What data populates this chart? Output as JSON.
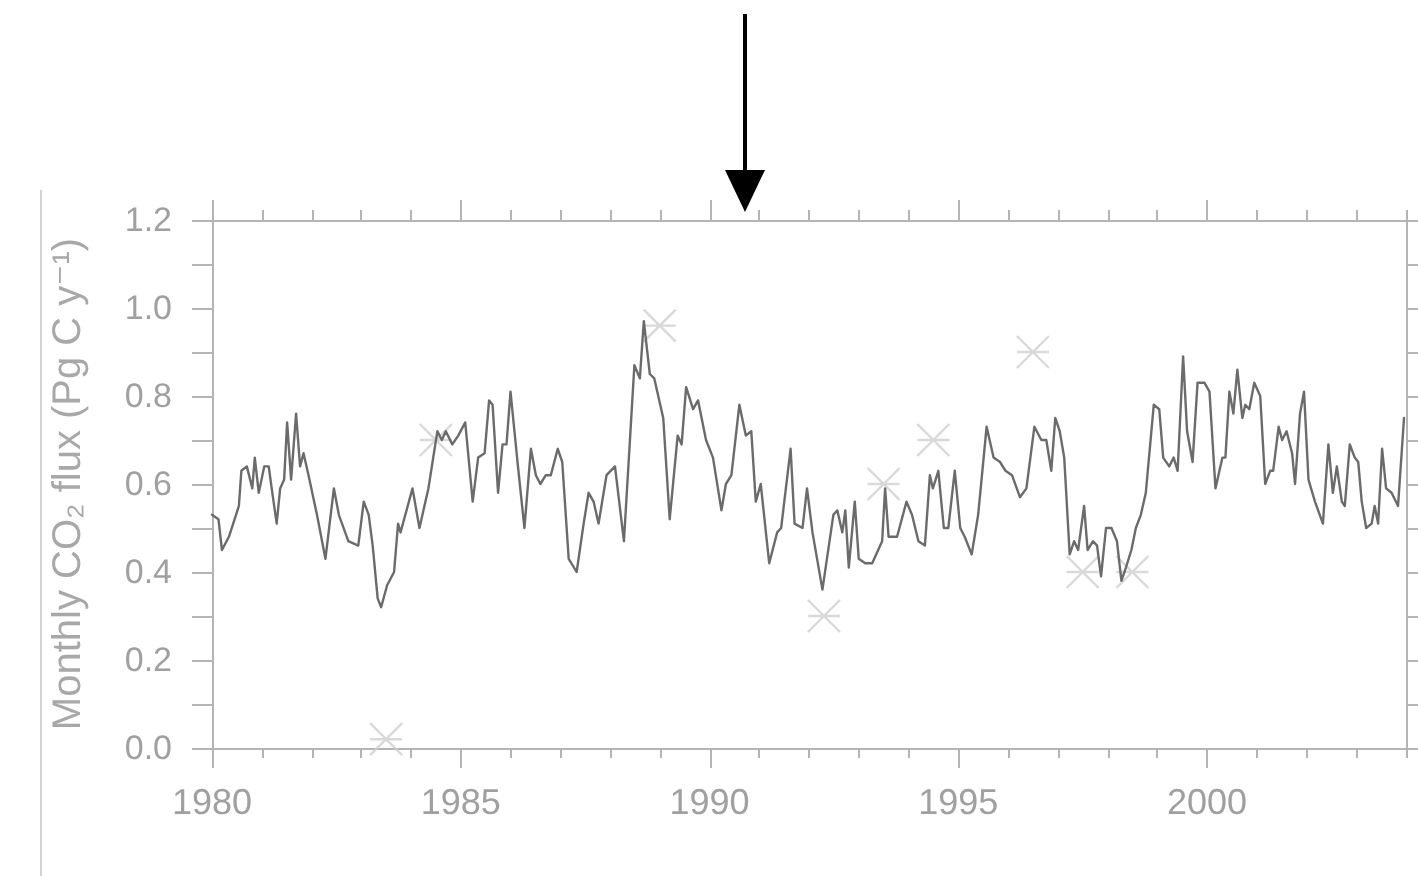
{
  "chart_data": {
    "type": "line",
    "ylabel": "Monthly CO₂ flux (Pg C y⁻¹)",
    "xlim": [
      1980,
      2004
    ],
    "xticks": [
      1980,
      {
        "value": 1981,
        "label": null
      },
      {
        "value": 1982,
        "label": null
      },
      {
        "value": 1983,
        "label": null
      },
      {
        "value": 1984,
        "label": null
      },
      1985,
      {
        "value": 1986,
        "label": null
      },
      {
        "value": 1987,
        "label": null
      },
      {
        "value": 1988,
        "label": null
      },
      {
        "value": 1989,
        "label": null
      },
      1990,
      {
        "value": 1991,
        "label": null
      },
      {
        "value": 1992,
        "label": null
      },
      {
        "value": 1993,
        "label": null
      },
      {
        "value": 1994,
        "label": null
      },
      1995,
      {
        "value": 1996,
        "label": null
      },
      {
        "value": 1997,
        "label": null
      },
      {
        "value": 1998,
        "label": null
      },
      {
        "value": 1999,
        "label": null
      },
      2000,
      {
        "value": 2001,
        "label": null
      },
      {
        "value": 2002,
        "label": null
      },
      {
        "value": 2003,
        "label": null
      },
      {
        "value": 2004,
        "label": null
      }
    ],
    "ylim": [
      0,
      1.2
    ],
    "yticks": [
      {
        "value": 0,
        "label": "0.0"
      },
      {
        "value": 0.1,
        "label": null
      },
      0.2,
      {
        "value": 0.3,
        "label": null
      },
      0.4,
      {
        "value": 0.5,
        "label": null
      },
      0.6,
      {
        "value": 0.7,
        "label": null
      },
      0.8,
      {
        "value": 0.9,
        "label": null
      },
      {
        "value": 1,
        "label": "1.0"
      },
      {
        "value": 1.1,
        "label": null
      },
      1.2
    ],
    "series": [
      {
        "color": "#6b6b6b",
        "marker": "none",
        "x": [
          1980.0,
          1980.13,
          1980.2,
          1980.34,
          1980.54,
          1980.59,
          1980.7,
          1980.81,
          1980.86,
          1980.94,
          1981.05,
          1981.14,
          1981.2,
          1981.3,
          1981.37,
          1981.45,
          1981.51,
          1981.59,
          1981.69,
          1981.77,
          1981.84,
          1981.94,
          1982.11,
          1982.28,
          1982.45,
          1982.55,
          1982.74,
          1982.94,
          1983.05,
          1983.15,
          1983.23,
          1983.33,
          1983.4,
          1983.52,
          1983.66,
          1983.74,
          1983.79,
          1984.03,
          1984.17,
          1984.35,
          1984.53,
          1984.62,
          1984.7,
          1984.83,
          1984.95,
          1985.09,
          1985.24,
          1985.35,
          1985.48,
          1985.57,
          1985.64,
          1985.75,
          1985.84,
          1985.92,
          1986.0,
          1986.15,
          1986.28,
          1986.41,
          1986.51,
          1986.6,
          1986.71,
          1986.81,
          1986.95,
          1987.04,
          1987.17,
          1987.33,
          1987.47,
          1987.57,
          1987.67,
          1987.77,
          1987.93,
          1988.1,
          1988.28,
          1988.49,
          1988.6,
          1988.68,
          1988.8,
          1988.89,
          1989.07,
          1989.2,
          1989.36,
          1989.44,
          1989.53,
          1989.67,
          1989.77,
          1989.93,
          1990.07,
          1990.24,
          1990.33,
          1990.44,
          1990.6,
          1990.73,
          1990.84,
          1990.93,
          1991.03,
          1991.2,
          1991.36,
          1991.44,
          1991.63,
          1991.71,
          1991.87,
          1991.96,
          1992.07,
          1992.27,
          1992.49,
          1992.57,
          1992.67,
          1992.73,
          1992.8,
          1992.92,
          1993.0,
          1993.13,
          1993.27,
          1993.47,
          1993.53,
          1993.6,
          1993.77,
          1993.96,
          1994.07,
          1994.2,
          1994.33,
          1994.43,
          1994.49,
          1994.6,
          1994.71,
          1994.8,
          1994.93,
          1995.04,
          1995.13,
          1995.27,
          1995.4,
          1995.57,
          1995.71,
          1995.84,
          1995.95,
          1996.08,
          1996.24,
          1996.37,
          1996.53,
          1996.67,
          1996.77,
          1996.87,
          1996.95,
          1997.04,
          1997.13,
          1997.24,
          1997.33,
          1997.41,
          1997.53,
          1997.6,
          1997.71,
          1997.79,
          1997.87,
          1997.97,
          1998.08,
          1998.19,
          1998.28,
          1998.37,
          1998.48,
          1998.57,
          1998.67,
          1998.77,
          1998.93,
          1999.04,
          1999.12,
          1999.24,
          1999.33,
          1999.41,
          1999.52,
          1999.6,
          1999.71,
          1999.81,
          1999.95,
          2000.05,
          2000.17,
          2000.31,
          2000.37,
          2000.45,
          2000.53,
          2000.61,
          2000.71,
          2000.77,
          2000.85,
          2000.95,
          2001.07,
          2001.17,
          2001.27,
          2001.33,
          2001.44,
          2001.51,
          2001.6,
          2001.71,
          2001.77,
          2001.87,
          2001.95,
          2002.04,
          2002.17,
          2002.33,
          2002.44,
          2002.53,
          2002.61,
          2002.71,
          2002.77,
          2002.87,
          2002.97,
          2003.04,
          2003.11,
          2003.2,
          2003.31,
          2003.37,
          2003.44,
          2003.52,
          2003.6,
          2003.71,
          2003.84,
          2003.96
        ],
        "values": [
          0.53,
          0.52,
          0.45,
          0.48,
          0.55,
          0.63,
          0.64,
          0.59,
          0.66,
          0.58,
          0.64,
          0.64,
          0.59,
          0.51,
          0.59,
          0.61,
          0.74,
          0.61,
          0.76,
          0.64,
          0.67,
          0.62,
          0.53,
          0.43,
          0.59,
          0.53,
          0.47,
          0.46,
          0.56,
          0.53,
          0.46,
          0.34,
          0.32,
          0.37,
          0.4,
          0.51,
          0.49,
          0.59,
          0.5,
          0.59,
          0.72,
          0.7,
          0.72,
          0.69,
          0.71,
          0.74,
          0.56,
          0.66,
          0.67,
          0.79,
          0.78,
          0.58,
          0.69,
          0.69,
          0.81,
          0.64,
          0.5,
          0.68,
          0.62,
          0.6,
          0.62,
          0.62,
          0.68,
          0.65,
          0.43,
          0.4,
          0.51,
          0.58,
          0.56,
          0.51,
          0.62,
          0.64,
          0.47,
          0.87,
          0.84,
          0.97,
          0.85,
          0.84,
          0.75,
          0.52,
          0.71,
          0.69,
          0.82,
          0.77,
          0.79,
          0.7,
          0.66,
          0.54,
          0.6,
          0.62,
          0.78,
          0.71,
          0.72,
          0.56,
          0.6,
          0.42,
          0.49,
          0.5,
          0.68,
          0.51,
          0.5,
          0.59,
          0.49,
          0.36,
          0.53,
          0.54,
          0.49,
          0.54,
          0.41,
          0.56,
          0.43,
          0.42,
          0.42,
          0.47,
          0.59,
          0.48,
          0.48,
          0.56,
          0.53,
          0.47,
          0.46,
          0.62,
          0.59,
          0.63,
          0.5,
          0.5,
          0.63,
          0.5,
          0.48,
          0.44,
          0.53,
          0.73,
          0.66,
          0.65,
          0.63,
          0.62,
          0.57,
          0.59,
          0.73,
          0.7,
          0.7,
          0.63,
          0.75,
          0.72,
          0.66,
          0.44,
          0.47,
          0.45,
          0.55,
          0.45,
          0.47,
          0.46,
          0.39,
          0.5,
          0.5,
          0.47,
          0.38,
          0.41,
          0.45,
          0.5,
          0.53,
          0.58,
          0.78,
          0.77,
          0.66,
          0.64,
          0.66,
          0.63,
          0.89,
          0.72,
          0.65,
          0.83,
          0.83,
          0.81,
          0.59,
          0.66,
          0.66,
          0.81,
          0.76,
          0.86,
          0.75,
          0.78,
          0.77,
          0.83,
          0.8,
          0.6,
          0.63,
          0.63,
          0.73,
          0.7,
          0.72,
          0.67,
          0.6,
          0.76,
          0.81,
          0.61,
          0.56,
          0.51,
          0.69,
          0.58,
          0.64,
          0.56,
          0.55,
          0.69,
          0.66,
          0.65,
          0.56,
          0.5,
          0.51,
          0.55,
          0.51,
          0.68,
          0.59,
          0.58,
          0.55,
          0.75
        ]
      },
      {
        "type": "scatter",
        "color": "#cfcfcf",
        "marker": "cross",
        "x": [
          1983.5,
          1984.5,
          1989.0,
          1992.3,
          1993.5,
          1994.5,
          1996.5,
          1997.5,
          1998.5
        ],
        "values": [
          0.02,
          0.7,
          0.96,
          0.3,
          0.6,
          0.7,
          0.9,
          0.4,
          0.4
        ]
      }
    ]
  }
}
